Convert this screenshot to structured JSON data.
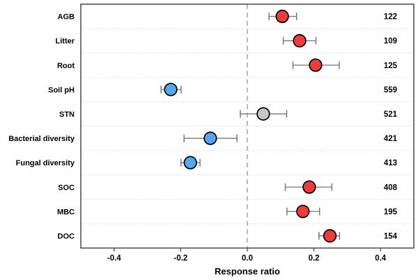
{
  "chart_data": {
    "type": "scatter",
    "subtype": "forest-dot-plot-with-error-bars",
    "title": "",
    "xlabel": "Response ratio",
    "ylabel": "",
    "xlim": [
      -0.5,
      0.5
    ],
    "xticks": [
      -0.4,
      -0.2,
      0.0,
      0.2,
      0.4
    ],
    "xtick_labels": [
      "-0.4",
      "-0.2",
      "0.0",
      "0.2",
      "0.4"
    ],
    "zero_line_x": 0.0,
    "grid": "dotted horizontal row separators",
    "legend_position": "none",
    "rows": [
      {
        "label": "AGB",
        "mean": 0.105,
        "ci_low": 0.065,
        "ci_high": 0.148,
        "n": "122",
        "color": "#ee3b3b"
      },
      {
        "label": "Litter",
        "mean": 0.157,
        "ci_low": 0.108,
        "ci_high": 0.206,
        "n": "109",
        "color": "#ee3b3b"
      },
      {
        "label": "Root",
        "mean": 0.205,
        "ci_low": 0.137,
        "ci_high": 0.276,
        "n": "125",
        "color": "#ee3b3b"
      },
      {
        "label": "Soil pH",
        "mean": -0.23,
        "ci_low": -0.259,
        "ci_high": -0.199,
        "n": "559",
        "color": "#55a7ee"
      },
      {
        "label": "STN",
        "mean": 0.048,
        "ci_low": -0.021,
        "ci_high": 0.118,
        "n": "521",
        "color": "#c6c6c6"
      },
      {
        "label": "Bacterial diversity",
        "mean": -0.111,
        "ci_low": -0.19,
        "ci_high": -0.031,
        "n": "421",
        "color": "#55a7ee"
      },
      {
        "label": "Fungal diversity",
        "mean": -0.171,
        "ci_low": -0.199,
        "ci_high": -0.142,
        "n": "413",
        "color": "#55a7ee"
      },
      {
        "label": "SOC",
        "mean": 0.186,
        "ci_low": 0.114,
        "ci_high": 0.254,
        "n": "408",
        "color": "#ee3b3b"
      },
      {
        "label": "MBC",
        "mean": 0.167,
        "ci_low": 0.119,
        "ci_high": 0.217,
        "n": "195",
        "color": "#ee3b3b"
      },
      {
        "label": "DOC",
        "mean": 0.248,
        "ci_low": 0.215,
        "ci_high": 0.277,
        "n": "154",
        "color": "#ee3b3b"
      }
    ],
    "marker_color_meaning": {
      "increase": "#ee3b3b",
      "decrease": "#55a7ee",
      "non_significant": "#c6c6c6"
    },
    "style": {
      "marker_outline": "#000000",
      "error_bar_color": "#777777",
      "gridline_color": "#d8d8d8",
      "zero_line_color": "#aaaaaa",
      "border_color": "#1a1a1a",
      "tick_color": "#444444",
      "text_color": "#000000",
      "background": "#ffffff"
    }
  }
}
